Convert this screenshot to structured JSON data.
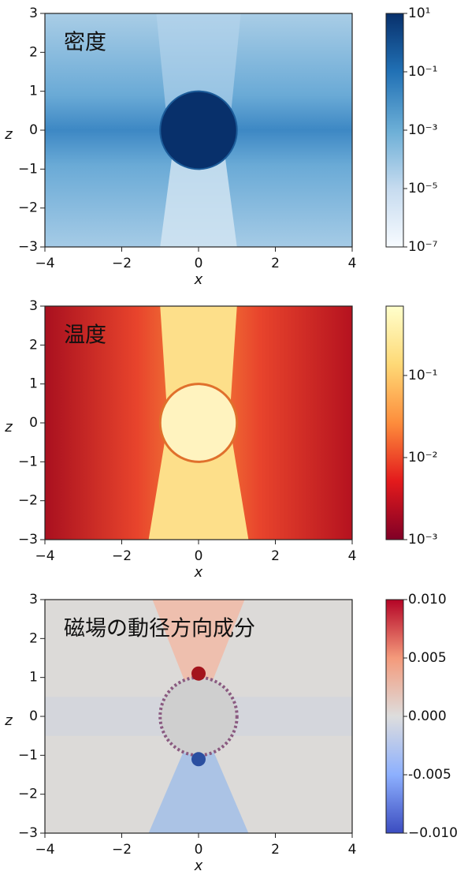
{
  "chart_data": [
    {
      "type": "heatmap",
      "title": "密度",
      "xlabel": "x",
      "ylabel": "z",
      "xlim": [
        -4,
        4
      ],
      "ylim": [
        -3,
        3
      ],
      "xticks": [
        {
          "value": -4,
          "label": "−4"
        },
        {
          "value": -2,
          "label": "−2"
        },
        0,
        2,
        4
      ],
      "yticks": [
        {
          "value": -3,
          "label": "−3"
        },
        {
          "value": -2,
          "label": "−2"
        },
        {
          "value": -1,
          "label": "−1"
        },
        0,
        1,
        2,
        3
      ],
      "colorbar": {
        "scale": "log",
        "lim": [
          1e-07,
          10
        ],
        "ticks": [
          {
            "value": 10,
            "label": "10¹"
          },
          {
            "value": 0.1,
            "label": "10⁻¹"
          },
          {
            "value": 0.001,
            "label": "10⁻³"
          },
          {
            "value": 1e-05,
            "label": "10⁻⁵"
          },
          {
            "value": 1e-07,
            "label": "10⁻⁷"
          }
        ],
        "colors": [
          "#f7fbff",
          "#c6dbef",
          "#6baed6",
          "#2171b5",
          "#08306b"
        ]
      }
    },
    {
      "type": "heatmap",
      "title": "温度",
      "xlabel": "x",
      "ylabel": "z",
      "xlim": [
        -4,
        4
      ],
      "ylim": [
        -3,
        3
      ],
      "xticks": [
        {
          "value": -4,
          "label": "−4"
        },
        {
          "value": -2,
          "label": "−2"
        },
        0,
        2,
        4
      ],
      "yticks": [
        {
          "value": -3,
          "label": "−3"
        },
        {
          "value": -2,
          "label": "−2"
        },
        {
          "value": -1,
          "label": "−1"
        },
        0,
        1,
        2,
        3
      ],
      "colorbar": {
        "scale": "log",
        "lim": [
          0.001,
          0.7
        ],
        "ticks": [
          {
            "value": 0.1,
            "label": "10⁻¹"
          },
          {
            "value": 0.01,
            "label": "10⁻²"
          },
          {
            "value": 0.001,
            "label": "10⁻³"
          }
        ],
        "colors": [
          "#800026",
          "#e31a1c",
          "#fd8d3c",
          "#fed976",
          "#ffffcc"
        ]
      }
    },
    {
      "type": "heatmap",
      "title": "磁場の動径方向成分",
      "xlabel": "x",
      "ylabel": "z",
      "xlim": [
        -4,
        4
      ],
      "ylim": [
        -3,
        3
      ],
      "xticks": [
        {
          "value": -4,
          "label": "−4"
        },
        {
          "value": -2,
          "label": "−2"
        },
        0,
        2,
        4
      ],
      "yticks": [
        {
          "value": -3,
          "label": "−3"
        },
        {
          "value": -2,
          "label": "−2"
        },
        {
          "value": -1,
          "label": "−1"
        },
        0,
        1,
        2,
        3
      ],
      "colorbar": {
        "scale": "linear",
        "lim": [
          -0.01,
          0.01
        ],
        "ticks": [
          {
            "value": 0.01,
            "label": "0.010"
          },
          0.005,
          {
            "value": 0,
            "label": "0.000"
          },
          -0.005,
          {
            "value": -0.01,
            "label": "−0.010"
          }
        ],
        "colors": [
          "#3b4cc0",
          "#8db0fe",
          "#dddddd",
          "#f49a7b",
          "#b40426"
        ]
      }
    }
  ]
}
